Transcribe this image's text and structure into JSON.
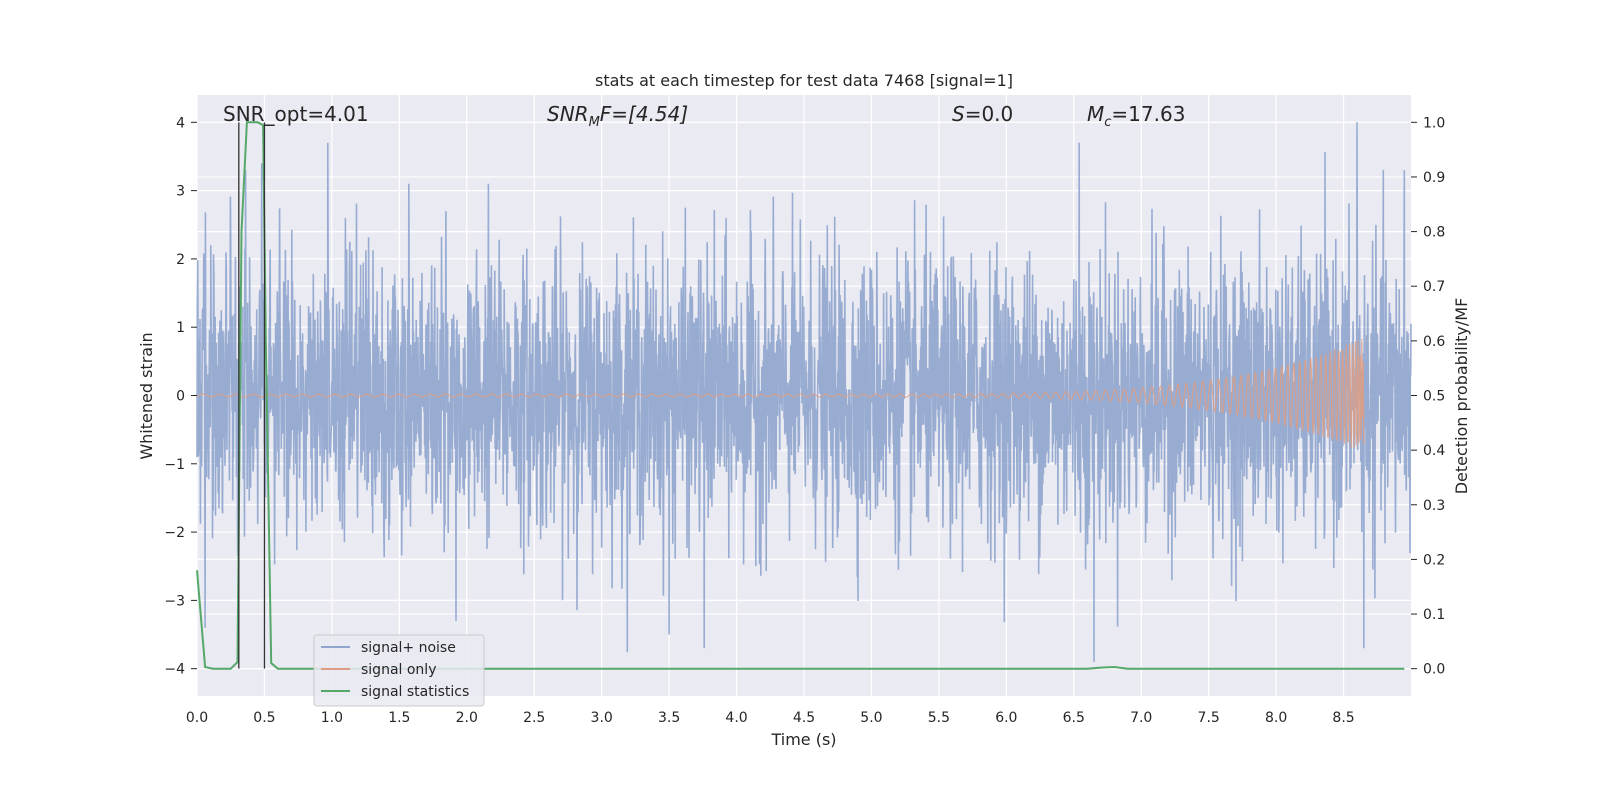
{
  "chart_data": {
    "type": "line",
    "title": "stats at each timestep for test data 7468 [signal=1]",
    "xlabel": "Time (s)",
    "ylabel_left": "Whitened strain",
    "ylabel_right": "Detection probability/MF",
    "xlim": [
      0,
      9.0
    ],
    "ylim_left": [
      -4.4,
      4.4
    ],
    "ylim_right": [
      -0.05,
      1.05
    ],
    "xticks": [
      0.0,
      0.5,
      1.0,
      1.5,
      2.0,
      2.5,
      3.0,
      3.5,
      4.0,
      4.5,
      5.0,
      5.5,
      6.0,
      6.5,
      7.0,
      7.5,
      8.0,
      8.5
    ],
    "xtick_labels": [
      "0.0",
      "0.5",
      "1.0",
      "1.5",
      "2.0",
      "2.5",
      "3.0",
      "3.5",
      "4.0",
      "4.5",
      "5.0",
      "5.5",
      "6.0",
      "6.5",
      "7.0",
      "7.5",
      "8.0",
      "8.5"
    ],
    "yticks_left": [
      -4,
      -3,
      -2,
      -1,
      0,
      1,
      2,
      3,
      4
    ],
    "ytick_labels_left": [
      "−4",
      "−3",
      "−2",
      "−1",
      "0",
      "1",
      "2",
      "3",
      "4"
    ],
    "yticks_right": [
      0.0,
      0.1,
      0.2,
      0.3,
      0.4,
      0.5,
      0.6,
      0.7,
      0.8,
      0.9,
      1.0
    ],
    "ytick_labels_right": [
      "0.0",
      "0.1",
      "0.2",
      "0.3",
      "0.4",
      "0.5",
      "0.6",
      "0.7",
      "0.8",
      "0.9",
      "1.0"
    ],
    "grid": true,
    "legend_position": "lower-left",
    "annotations": {
      "snr_opt": "SNR_opt=4.01",
      "snr_mf_italic": "SNR",
      "snr_mf_sub": "M",
      "snr_mf_rest": "F=[4.54]",
      "s_italic": "S",
      "s_rest": "=0.0",
      "mc_italic": "M",
      "mc_sub": "c",
      "mc_rest": "=17.63"
    },
    "vertical_markers_x": [
      0.31,
      0.5
    ],
    "series": [
      {
        "name": "signal+ noise",
        "color": "#8fa5ce",
        "axis": "left",
        "style": "dense-noise",
        "sample_rate_hz": 400,
        "envelope_typical": [
          -1.5,
          1.6
        ],
        "notable_peaks": [
          {
            "x": 0.97,
            "y": 3.7
          },
          {
            "x": 0.48,
            "y": 3.4
          },
          {
            "x": 0.36,
            "y": 3.3
          },
          {
            "x": 6.54,
            "y": 3.7
          },
          {
            "x": 8.6,
            "y": 4.0
          },
          {
            "x": 8.95,
            "y": 3.3
          },
          {
            "x": 1.57,
            "y": 3.1
          },
          {
            "x": 2.16,
            "y": 3.1
          }
        ],
        "notable_troughs": [
          {
            "x": 1.92,
            "y": -3.3
          },
          {
            "x": 3.76,
            "y": -3.7
          },
          {
            "x": 6.65,
            "y": -3.9
          },
          {
            "x": 8.65,
            "y": -3.7
          },
          {
            "x": 3.5,
            "y": -3.5
          },
          {
            "x": 0.06,
            "y": -3.4
          }
        ]
      },
      {
        "name": "signal only",
        "color": "#dd9d84",
        "axis": "left",
        "style": "chirp",
        "chirp_start_x": 4.0,
        "chirp_end_x": 8.65,
        "max_amplitude": 0.85
      },
      {
        "name": "signal statistics",
        "color": "#55a868",
        "axis": "right",
        "x": [
          0.0,
          0.06,
          0.12,
          0.25,
          0.3,
          0.33,
          0.37,
          0.4,
          0.45,
          0.49,
          0.51,
          0.55,
          0.6,
          0.65,
          6.6,
          6.7,
          6.8,
          6.9,
          8.95
        ],
        "values": [
          0.18,
          0.003,
          0.0,
          0.0,
          0.012,
          0.8,
          1.0,
          1.0,
          1.0,
          0.995,
          0.6,
          0.01,
          0.0,
          0.0,
          0.0,
          0.002,
          0.003,
          0.0,
          0.0
        ]
      }
    ]
  }
}
